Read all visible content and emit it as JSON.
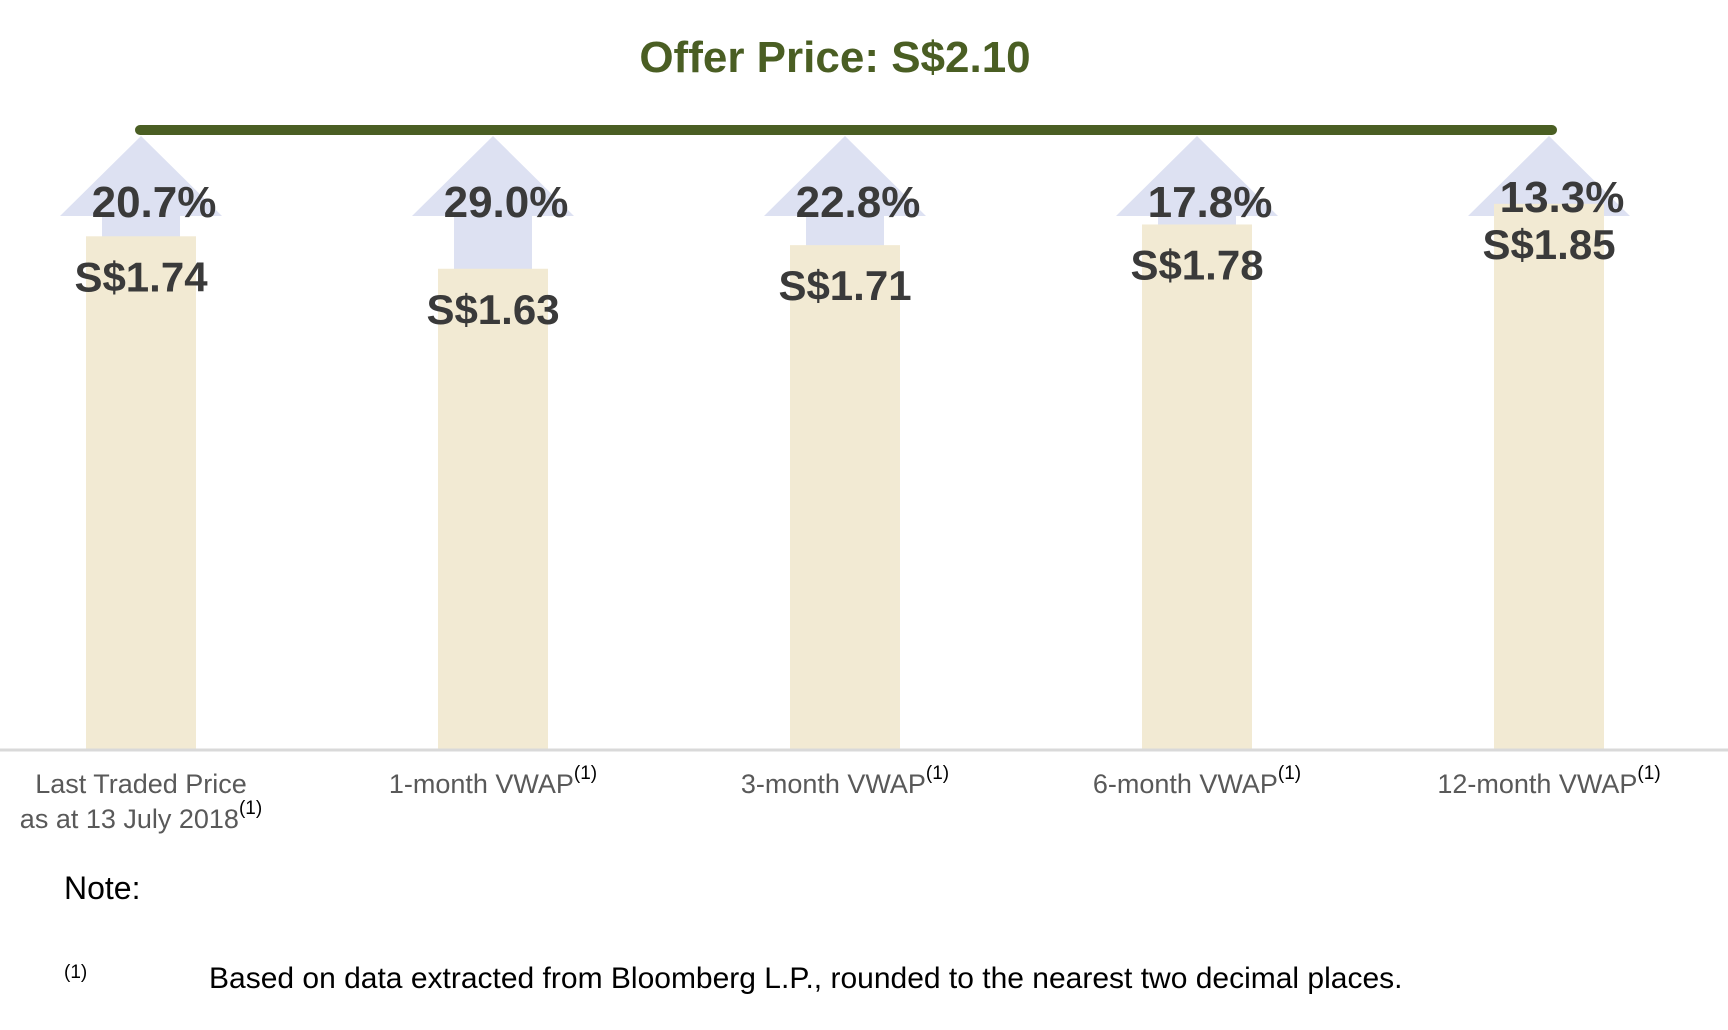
{
  "chart_data": {
    "type": "bar",
    "title": "Offer Price: S$2.10",
    "offer_price": 2.1,
    "categories": [
      {
        "line1": "Last Traded Price",
        "line2": "as at 13 July 2018",
        "sup": "(1)"
      },
      {
        "line1": "1-month VWAP",
        "line2": "",
        "sup": "(1)"
      },
      {
        "line1": "3-month VWAP",
        "line2": "",
        "sup": "(1)"
      },
      {
        "line1": "6-month VWAP",
        "line2": "",
        "sup": "(1)"
      },
      {
        "line1": "12-month VWAP",
        "line2": "",
        "sup": "(1)"
      }
    ],
    "values": [
      1.74,
      1.63,
      1.71,
      1.78,
      1.85
    ],
    "value_labels": [
      "S$1.74",
      "S$1.63",
      "S$1.71",
      "S$1.78",
      "S$1.85"
    ],
    "premiums": [
      "20.7%",
      "29.0%",
      "22.8%",
      "17.8%",
      "13.3%"
    ],
    "colors": {
      "bar": "#f2ead3",
      "arrow": "#dde1f2",
      "offer_line": "#4a5e23",
      "title": "#4a5e23",
      "baseline": "#d9d9d9"
    }
  },
  "note": {
    "title": "Note:",
    "marker": "(1)",
    "text": "Based on data extracted from Bloomberg L.P., rounded to the nearest two decimal places."
  }
}
